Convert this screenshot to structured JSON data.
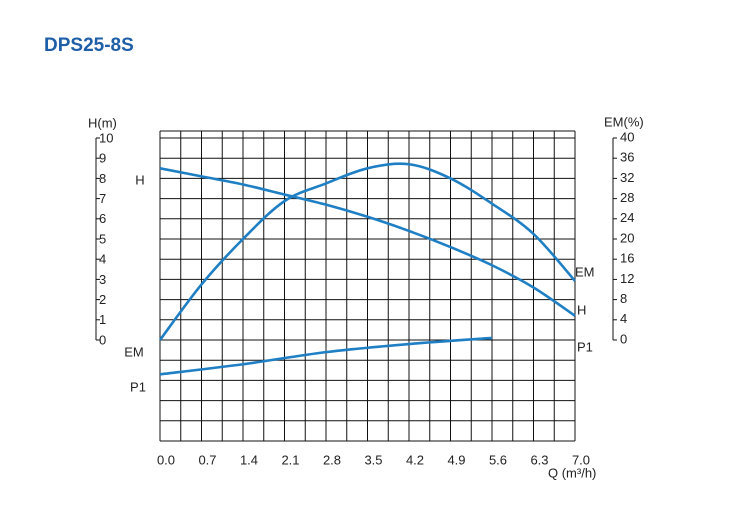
{
  "chart_data": {
    "type": "line",
    "title": "DPS25-8S",
    "x_label": "Q (m³/h)",
    "y_label": "H(m)",
    "y2_label": "EM(%)",
    "xlim": [
      0,
      7
    ],
    "xticks": [
      {
        "value": 0,
        "label": "0.0"
      },
      0.7,
      1.4,
      2.1,
      2.8,
      3.5,
      4.2,
      4.9,
      5.6,
      6.3,
      {
        "value": 7,
        "label": "7.0"
      }
    ],
    "ylim": [
      -5,
      10
    ],
    "yticks": [
      0,
      1,
      2,
      3,
      4,
      5,
      6,
      7,
      8,
      9,
      10
    ],
    "y2lim": [
      -20,
      40
    ],
    "y2ticks": [
      0,
      4,
      8,
      12,
      16,
      20,
      24,
      28,
      32,
      36,
      40
    ],
    "grid": true,
    "series": [
      {
        "name": "H",
        "color": "#1f7fc4",
        "axis": "y",
        "x": [
          0,
          0.7,
          1.4,
          2.1,
          2.8,
          3.5,
          4.2,
          4.9,
          5.6,
          6.3,
          7.0
        ],
        "values": [
          8.5,
          8.1,
          7.7,
          7.2,
          6.7,
          6.1,
          5.4,
          4.6,
          3.7,
          2.6,
          1.2
        ]
      },
      {
        "name": "EM",
        "color": "#1f7fc4",
        "axis": "y2",
        "x": [
          0,
          0.7,
          1.4,
          2.1,
          2.8,
          3.5,
          4.2,
          4.9,
          5.6,
          6.3,
          7.0
        ],
        "values": [
          0,
          11,
          20,
          27.5,
          31,
          34,
          34.8,
          32,
          27,
          21,
          11.7
        ]
      },
      {
        "name": "P1",
        "color": "#1f7fc4",
        "axis": "y",
        "x": [
          0,
          1.4,
          2.8,
          4.2,
          5.6
        ],
        "values": [
          -1.7,
          -1.2,
          -0.6,
          -0.2,
          0.1
        ]
      }
    ]
  }
}
